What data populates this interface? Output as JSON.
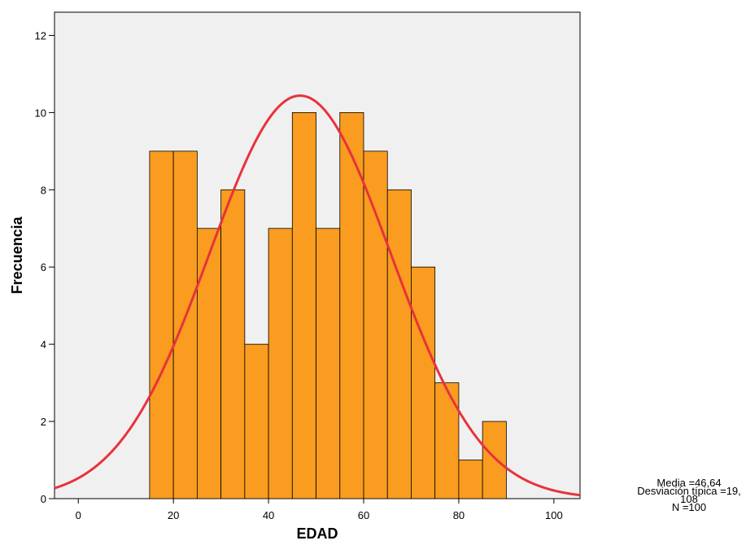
{
  "chart_data": {
    "type": "bar",
    "subtype": "histogram-with-normal-curve",
    "xlabel": "EDAD",
    "ylabel": "Frecuencia",
    "xlim": [
      -5,
      105.5
    ],
    "ylim": [
      0,
      12.6
    ],
    "x_ticks": [
      "0",
      "20",
      "40",
      "60",
      "80",
      "100"
    ],
    "y_ticks": [
      "0",
      "2",
      "4",
      "6",
      "8",
      "10",
      "12"
    ],
    "bins": [
      {
        "start": 15,
        "end": 20,
        "count": 9
      },
      {
        "start": 20,
        "end": 25,
        "count": 9
      },
      {
        "start": 25,
        "end": 30,
        "count": 7
      },
      {
        "start": 30,
        "end": 35,
        "count": 8
      },
      {
        "start": 35,
        "end": 40,
        "count": 4
      },
      {
        "start": 40,
        "end": 45,
        "count": 7
      },
      {
        "start": 45,
        "end": 50,
        "count": 10
      },
      {
        "start": 50,
        "end": 55,
        "count": 7
      },
      {
        "start": 55,
        "end": 60,
        "count": 10
      },
      {
        "start": 60,
        "end": 65,
        "count": 9
      },
      {
        "start": 65,
        "end": 70,
        "count": 8
      },
      {
        "start": 70,
        "end": 75,
        "count": 6
      },
      {
        "start": 75,
        "end": 80,
        "count": 3
      },
      {
        "start": 80,
        "end": 85,
        "count": 1
      },
      {
        "start": 85,
        "end": 90,
        "count": 2
      }
    ],
    "normal_curve": {
      "mean": 46.64,
      "sd": 19.108,
      "n": 100,
      "bin_width": 5
    },
    "stats_lines": [
      "Media =46,64",
      "Desviación típica =19,",
      "108",
      "N =100"
    ],
    "colors": {
      "bar_fill": "#f99c1f",
      "curve": "#e8323c",
      "plot_bg": "#f0f0f0"
    },
    "grid": false
  }
}
